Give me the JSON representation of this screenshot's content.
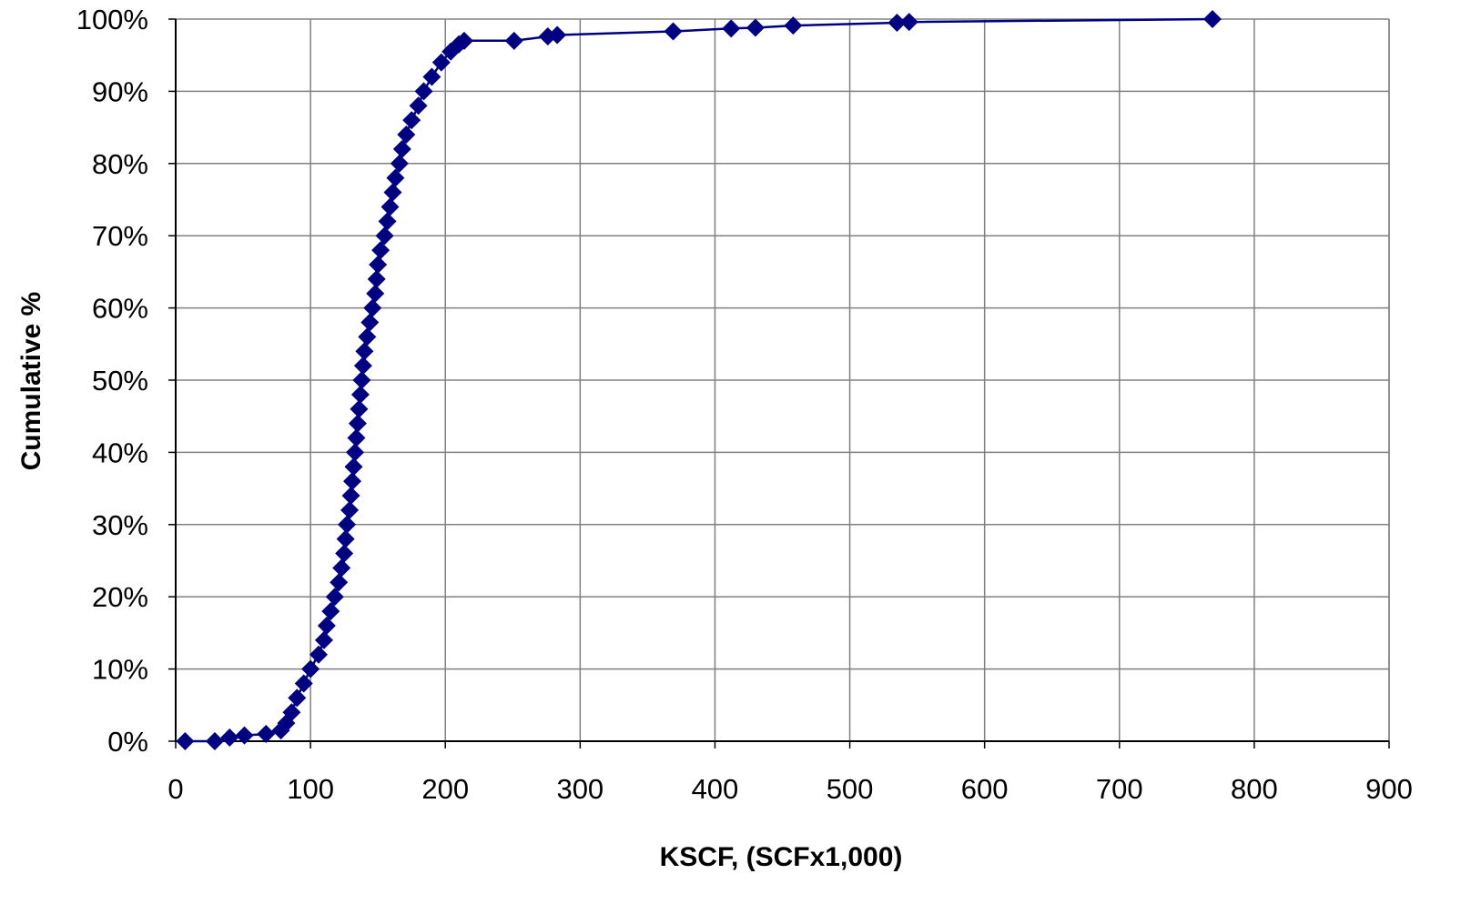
{
  "chart_data": {
    "type": "line",
    "title": "",
    "xlabel": "KSCF, (SCFx1,000)",
    "ylabel": "Cumulative %",
    "xlim": [
      0,
      900
    ],
    "ylim": [
      0,
      100
    ],
    "x_ticks": [
      "0",
      "100",
      "200",
      "300",
      "400",
      "500",
      "600",
      "700",
      "800",
      "900"
    ],
    "y_ticks": [
      "0%",
      "10%",
      "20%",
      "30%",
      "40%",
      "50%",
      "60%",
      "70%",
      "80%",
      "90%",
      "100%"
    ],
    "grid": true,
    "legend": "none",
    "marker": "diamond",
    "colors": {
      "series": "#000080",
      "grid": "#808080",
      "axis": "#000000"
    },
    "series": [
      {
        "points": [
          [
            7,
            0
          ],
          [
            29,
            0
          ],
          [
            40,
            0.5
          ],
          [
            51,
            0.8
          ],
          [
            67,
            1.0
          ],
          [
            78,
            1.5
          ],
          [
            82,
            2.5
          ],
          [
            86,
            4
          ],
          [
            90,
            6
          ],
          [
            95,
            8
          ],
          [
            100,
            10
          ],
          [
            106,
            12
          ],
          [
            110,
            14
          ],
          [
            112,
            16
          ],
          [
            115,
            18
          ],
          [
            118,
            20
          ],
          [
            121,
            22
          ],
          [
            123,
            24
          ],
          [
            125,
            26
          ],
          [
            126,
            28
          ],
          [
            127,
            30
          ],
          [
            129,
            32
          ],
          [
            130,
            34
          ],
          [
            131,
            36
          ],
          [
            132,
            38
          ],
          [
            133,
            40
          ],
          [
            134,
            42
          ],
          [
            135,
            44
          ],
          [
            136,
            46
          ],
          [
            137,
            48
          ],
          [
            138,
            50
          ],
          [
            139,
            52
          ],
          [
            140,
            54
          ],
          [
            142,
            56
          ],
          [
            144,
            58
          ],
          [
            146,
            60
          ],
          [
            148,
            62
          ],
          [
            149,
            64
          ],
          [
            150,
            66
          ],
          [
            152,
            68
          ],
          [
            155,
            70
          ],
          [
            157,
            72
          ],
          [
            159,
            74
          ],
          [
            161,
            76
          ],
          [
            163,
            78
          ],
          [
            166,
            80
          ],
          [
            168,
            82
          ],
          [
            171,
            84
          ],
          [
            175,
            86
          ],
          [
            180,
            88
          ],
          [
            184,
            90
          ],
          [
            190,
            92
          ],
          [
            197,
            94
          ],
          [
            204,
            95.5
          ],
          [
            210,
            96.5
          ],
          [
            214,
            97
          ],
          [
            251,
            97
          ],
          [
            276,
            97.6
          ],
          [
            283,
            97.8
          ],
          [
            369,
            98.3
          ],
          [
            412,
            98.7
          ],
          [
            430,
            98.8
          ],
          [
            458,
            99.1
          ],
          [
            535,
            99.5
          ],
          [
            544,
            99.6
          ],
          [
            769,
            100
          ]
        ]
      }
    ]
  }
}
